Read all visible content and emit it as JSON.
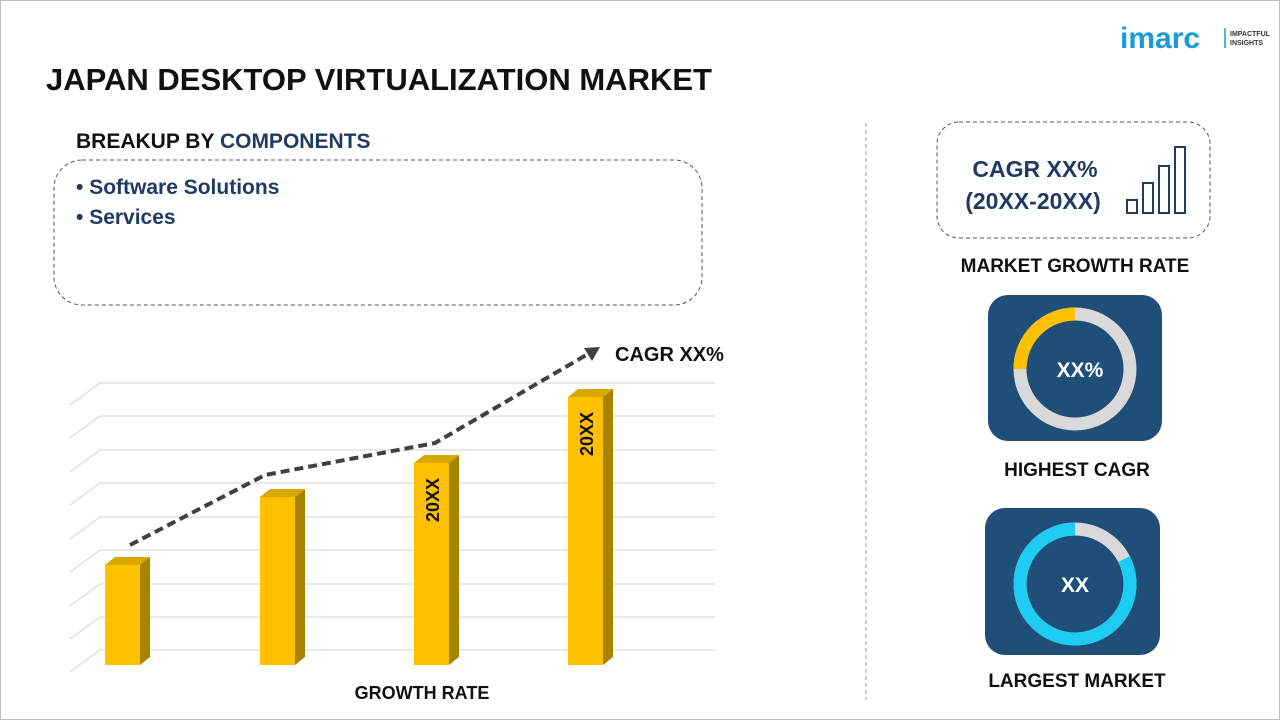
{
  "header": {
    "title": "JAPAN DESKTOP VIRTUALIZATION MARKET",
    "logo": "imarc",
    "logo_tagline": [
      "IMPACTFUL",
      "INSIGHTS"
    ]
  },
  "breakup": {
    "label": "BREAKUP BY",
    "highlight": "COMPONENTS",
    "items": [
      "Software Solutions",
      "Services"
    ]
  },
  "growth_chart": {
    "cagr_label": "CAGR XX%",
    "bar_labels": [
      "20XX",
      "20XX"
    ],
    "axis_label": "GROWTH RATE"
  },
  "market_growth": {
    "cagr": "CAGR XX%",
    "period": "(20XX-20XX)",
    "label": "MARKET GROWTH RATE"
  },
  "highest_cagr": {
    "value": "XX%",
    "label": "HIGHEST CAGR"
  },
  "largest_market": {
    "value": "XX",
    "label": "LARGEST MARKET"
  }
}
